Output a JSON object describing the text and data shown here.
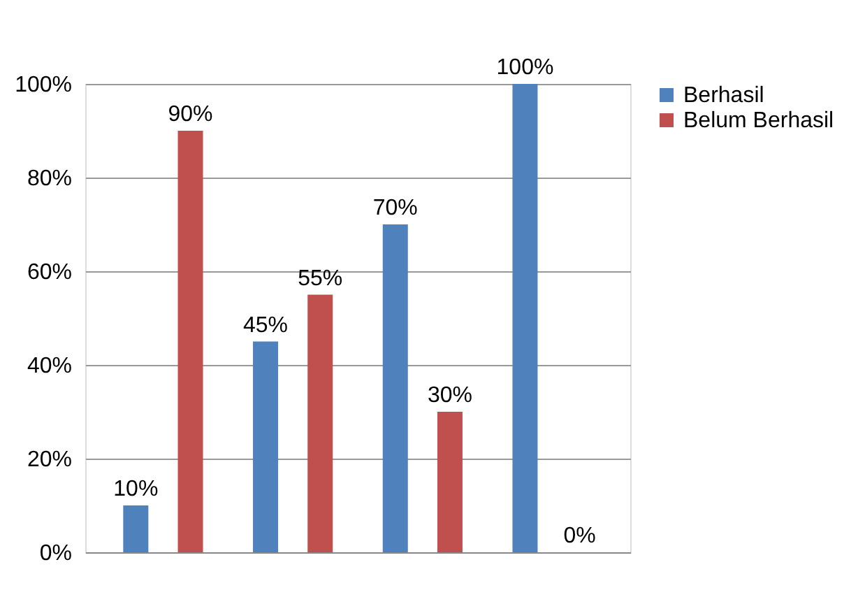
{
  "chart_data": {
    "type": "bar",
    "categories": [
      null,
      null,
      null,
      null
    ],
    "series": [
      {
        "name": "Berhasil",
        "color": "#4f81bd",
        "values": [
          10,
          45,
          70,
          100
        ],
        "value_labels": [
          "10%",
          "45%",
          "70%",
          "100%"
        ]
      },
      {
        "name": "Belum Berhasil",
        "color": "#c0504d",
        "values": [
          90,
          55,
          30,
          0
        ],
        "value_labels": [
          "90%",
          "55%",
          "30%",
          "0%"
        ]
      }
    ],
    "ylim": [
      0,
      100
    ],
    "yticks": [
      {
        "value": 0,
        "label": "0%"
      },
      {
        "value": 20,
        "label": "20%"
      },
      {
        "value": 40,
        "label": "40%"
      },
      {
        "value": 60,
        "label": "60%"
      },
      {
        "value": 80,
        "label": "80%"
      },
      {
        "value": 100,
        "label": "100%"
      }
    ],
    "grid": "y",
    "legend": "right",
    "tick_labels": "y"
  }
}
